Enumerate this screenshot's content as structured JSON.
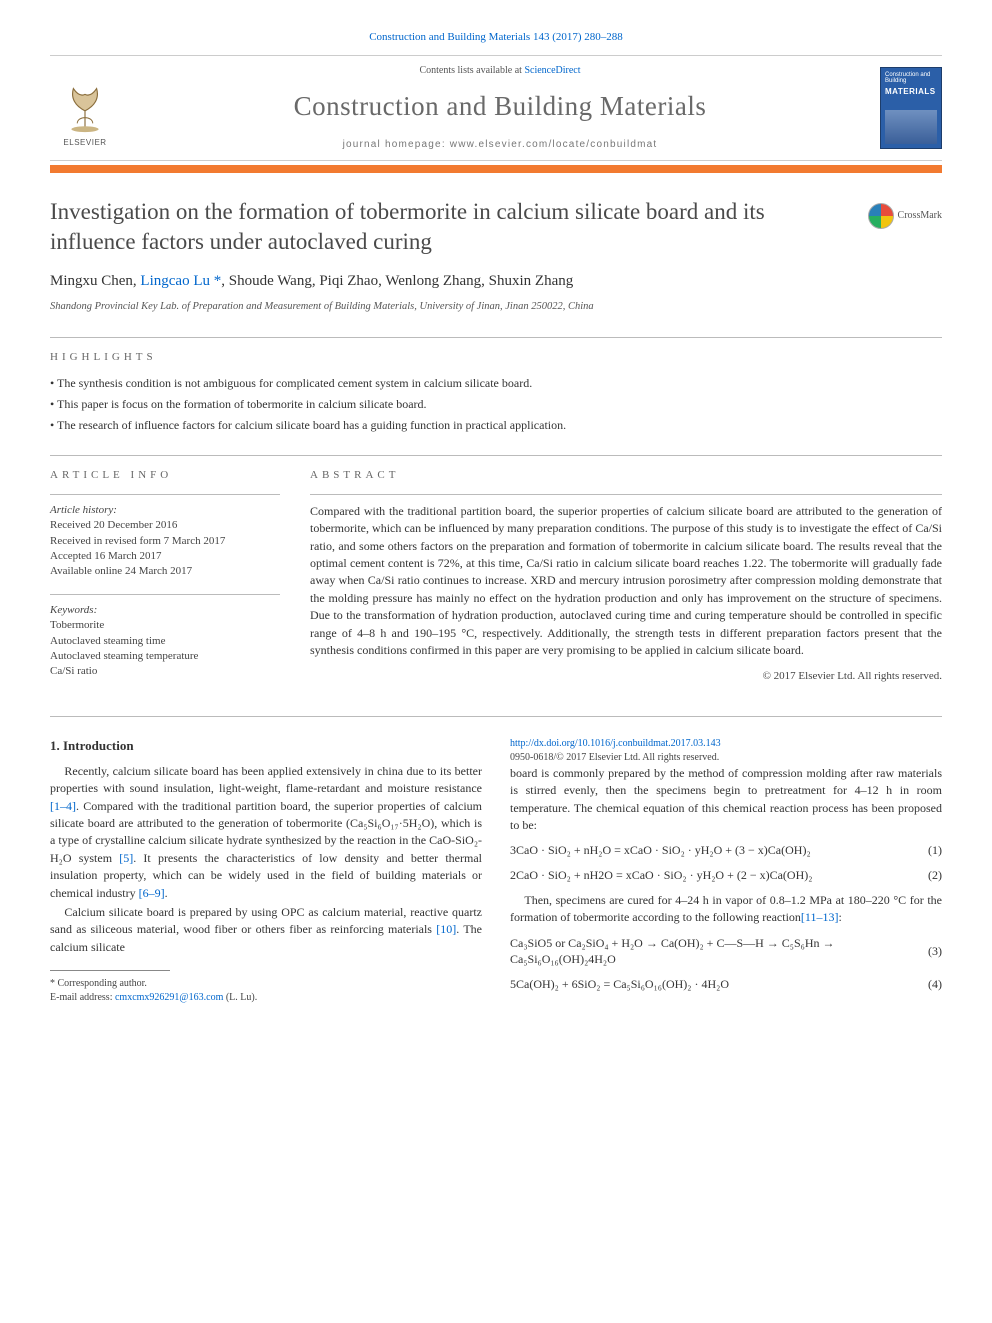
{
  "citation": "Construction and Building Materials 143 (2017) 280–288",
  "header": {
    "contents_prefix": "Contents lists available at ",
    "contents_link": "ScienceDirect",
    "journal_name": "Construction and Building Materials",
    "homepage_prefix": "journal homepage: ",
    "homepage_url": "www.elsevier.com/locate/conbuildmat",
    "elsevier_word": "ELSEVIER",
    "cover_line1": "Construction and Building",
    "cover_line2": "MATERIALS"
  },
  "crossmark_label": "CrossMark",
  "title": "Investigation on the formation of tobermorite in calcium silicate board and its influence factors under autoclaved curing",
  "authors_raw": "Mingxu Chen, Lingcao Lu *, Shoude Wang, Piqi Zhao, Wenlong Zhang, Shuxin Zhang",
  "authors": [
    {
      "name": "Mingxu Chen"
    },
    {
      "name": "Lingcao Lu",
      "corr": true
    },
    {
      "name": "Shoude Wang"
    },
    {
      "name": "Piqi Zhao"
    },
    {
      "name": "Wenlong Zhang"
    },
    {
      "name": "Shuxin Zhang"
    }
  ],
  "affiliation": "Shandong Provincial Key Lab. of Preparation and Measurement of Building Materials, University of Jinan, Jinan 250022, China",
  "labels": {
    "highlights": "HIGHLIGHTS",
    "article_info": "ARTICLE INFO",
    "abstract": "ABSTRACT"
  },
  "highlights": [
    "The synthesis condition is not ambiguous for complicated cement system in calcium silicate board.",
    "This paper is focus on the formation of tobermorite in calcium silicate board.",
    "The research of influence factors for calcium silicate board has a guiding function in practical application."
  ],
  "article_info": {
    "history_label": "Article history:",
    "history": [
      "Received 20 December 2016",
      "Received in revised form 7 March 2017",
      "Accepted 16 March 2017",
      "Available online 24 March 2017"
    ],
    "keywords_label": "Keywords:",
    "keywords": [
      "Tobermorite",
      "Autoclaved steaming time",
      "Autoclaved steaming temperature",
      "Ca/Si ratio"
    ]
  },
  "abstract": "Compared with the traditional partition board, the superior properties of calcium silicate board are attributed to the generation of tobermorite, which can be influenced by many preparation conditions. The purpose of this study is to investigate the effect of Ca/Si ratio, and some others factors on the preparation and formation of tobermorite in calcium silicate board. The results reveal that the optimal cement content is 72%, at this time, Ca/Si ratio in calcium silicate board reaches 1.22. The tobermorite will gradually fade away when Ca/Si ratio continues to increase. XRD and mercury intrusion porosimetry after compression molding demonstrate that the molding pressure has mainly no effect on the hydration production and only has improvement on the structure of specimens. Due to the transformation of hydration production, autoclaved curing time and curing temperature should be controlled in specific range of 4–8 h and 190–195 °C, respectively. Additionally, the strength tests in different preparation factors present that the synthesis conditions confirmed in this paper are very promising to be applied in calcium silicate board.",
  "abstract_copyright": "© 2017 Elsevier Ltd. All rights reserved.",
  "intro_heading": "1. Introduction",
  "intro_p1_pre": "Recently, calcium silicate board has been applied extensively in china due to its better properties with sound insulation, light-weight, flame-retardant and moisture resistance ",
  "intro_p1_ref1": "[1–4]",
  "intro_p1_mid": ". Compared with the traditional partition board, the superior properties of calcium silicate board are attributed to the generation of tobermorite (Ca₅Si₆O₁₇·5H₂O), which is a type of crystalline calcium silicate hydrate synthesized by the reaction in the CaO-SiO₂-H₂O system ",
  "intro_p1_ref2": "[5]",
  "intro_p1_post": ". It presents the characteristics of low density and better thermal insulation property, which can be widely used in the field of building materials or chemical industry ",
  "intro_p1_ref3": "[6–9]",
  "intro_p1_end": ".",
  "intro_p2_pre": "Calcium silicate board is prepared by using OPC as calcium material, reactive quartz sand as siliceous material, wood fiber or others fiber as reinforcing materials ",
  "intro_p2_ref": "[10]",
  "intro_p2_post": ". The calcium silicate ",
  "col2_p1": "board is commonly prepared by the method of compression molding after raw materials is stirred evenly, then the specimens begin to pretreatment for 4–12 h in room temperature. The chemical equation of this chemical reaction process has been proposed to be:",
  "eqn1": "3CaO · SiO₂ + nH₂O = xCaO · SiO₂ · yH₂O + (3 − x)Ca(OH)₂",
  "eqn1_num": "(1)",
  "eqn2": "2CaO · SiO₂ + nH2O = xCaO · SiO₂ · yH₂O + (2 − x)Ca(OH)₂",
  "eqn2_num": "(2)",
  "col2_p2_pre": "Then, specimens are cured for 4–24 h in vapor of 0.8–1.2 MPa at 180–220 °C for the formation of tobermorite according to the following reaction",
  "col2_p2_ref": "[11–13]",
  "col2_p2_post": ":",
  "eqn3": "Ca₃SiO5 or Ca₂SiO₄ + H₂O → Ca(OH)₂ + C—S—H → C₅S₆Hn → Ca₅Si₆O₁₆(OH)₂4H₂O",
  "eqn3_num": "(3)",
  "eqn4": "5Ca(OH)₂ + 6SiO₂ = Ca₅Si₆O₁₆(OH)₂ · 4H₂O",
  "eqn4_num": "(4)",
  "footnote": {
    "corr_label": "* Corresponding author.",
    "email_label": "E-mail address: ",
    "email": "cmxcmx926291@163.com",
    "email_name": " (L. Lu)."
  },
  "doi": {
    "url": "http://dx.doi.org/10.1016/j.conbuildmat.2017.03.143",
    "issn_line": "0950-0618/© 2017 Elsevier Ltd. All rights reserved."
  },
  "colors": {
    "link": "#0066cc",
    "orange_bar": "#f27a30",
    "title_gray": "#4a4a4a",
    "journal_gray": "#696969",
    "rule": "#bbbbbb"
  }
}
